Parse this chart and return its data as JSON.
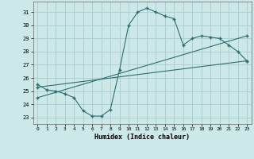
{
  "xlabel": "Humidex (Indice chaleur)",
  "bg_color": "#cce8e8",
  "line_color": "#2d6e6e",
  "grid_color": "#aacccc",
  "xlim": [
    -0.5,
    23.5
  ],
  "ylim": [
    22.5,
    31.8
  ],
  "yticks": [
    23,
    24,
    25,
    26,
    27,
    28,
    29,
    30,
    31
  ],
  "xticks": [
    0,
    1,
    2,
    3,
    4,
    5,
    6,
    7,
    8,
    9,
    10,
    11,
    12,
    13,
    14,
    15,
    16,
    17,
    18,
    19,
    20,
    21,
    22,
    23
  ],
  "curve1_x": [
    0,
    1,
    2,
    3,
    4,
    5,
    6,
    7,
    8,
    9,
    10,
    11,
    12,
    13,
    14,
    15,
    16,
    17,
    18,
    19,
    20,
    21,
    22,
    23
  ],
  "curve1_y": [
    25.5,
    25.1,
    25.0,
    24.8,
    24.5,
    23.5,
    23.1,
    23.1,
    23.6,
    26.6,
    30.0,
    31.0,
    31.3,
    31.0,
    30.7,
    30.5,
    28.5,
    29.0,
    29.2,
    29.1,
    29.0,
    28.5,
    28.0,
    27.3
  ],
  "line2_x": [
    0,
    23
  ],
  "line2_y": [
    25.3,
    27.3
  ],
  "line3_x": [
    0,
    23
  ],
  "line3_y": [
    24.5,
    29.2
  ]
}
